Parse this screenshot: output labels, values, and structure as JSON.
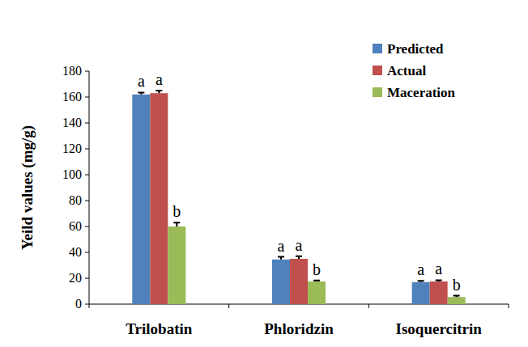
{
  "chart_data": {
    "type": "bar",
    "y_label": "Yeild values (mg/g)",
    "categories": [
      "Trilobatin",
      "Phloridzin",
      "Isoquercitrin"
    ],
    "series": [
      {
        "name": "Predicted",
        "color": "#4f81bd",
        "values": [
          162,
          34.5,
          17
        ],
        "errors": [
          1.5,
          2,
          1
        ],
        "annotations": [
          "a",
          "a",
          "a"
        ]
      },
      {
        "name": "Actual",
        "color": "#c0504d",
        "values": [
          163,
          35,
          17.5
        ],
        "errors": [
          2,
          2,
          1
        ],
        "annotations": [
          "a",
          "a",
          "a"
        ]
      },
      {
        "name": "Maceration",
        "color": "#9bbb59",
        "values": [
          60,
          17.5,
          5.5
        ],
        "errors": [
          3,
          0.8,
          1
        ],
        "annotations": [
          "b",
          "b",
          "b"
        ]
      }
    ],
    "ylim": [
      0,
      180
    ],
    "yticks": [
      0,
      20,
      40,
      60,
      80,
      100,
      120,
      140,
      160,
      180
    ],
    "grid": false,
    "legend": "top-right"
  }
}
